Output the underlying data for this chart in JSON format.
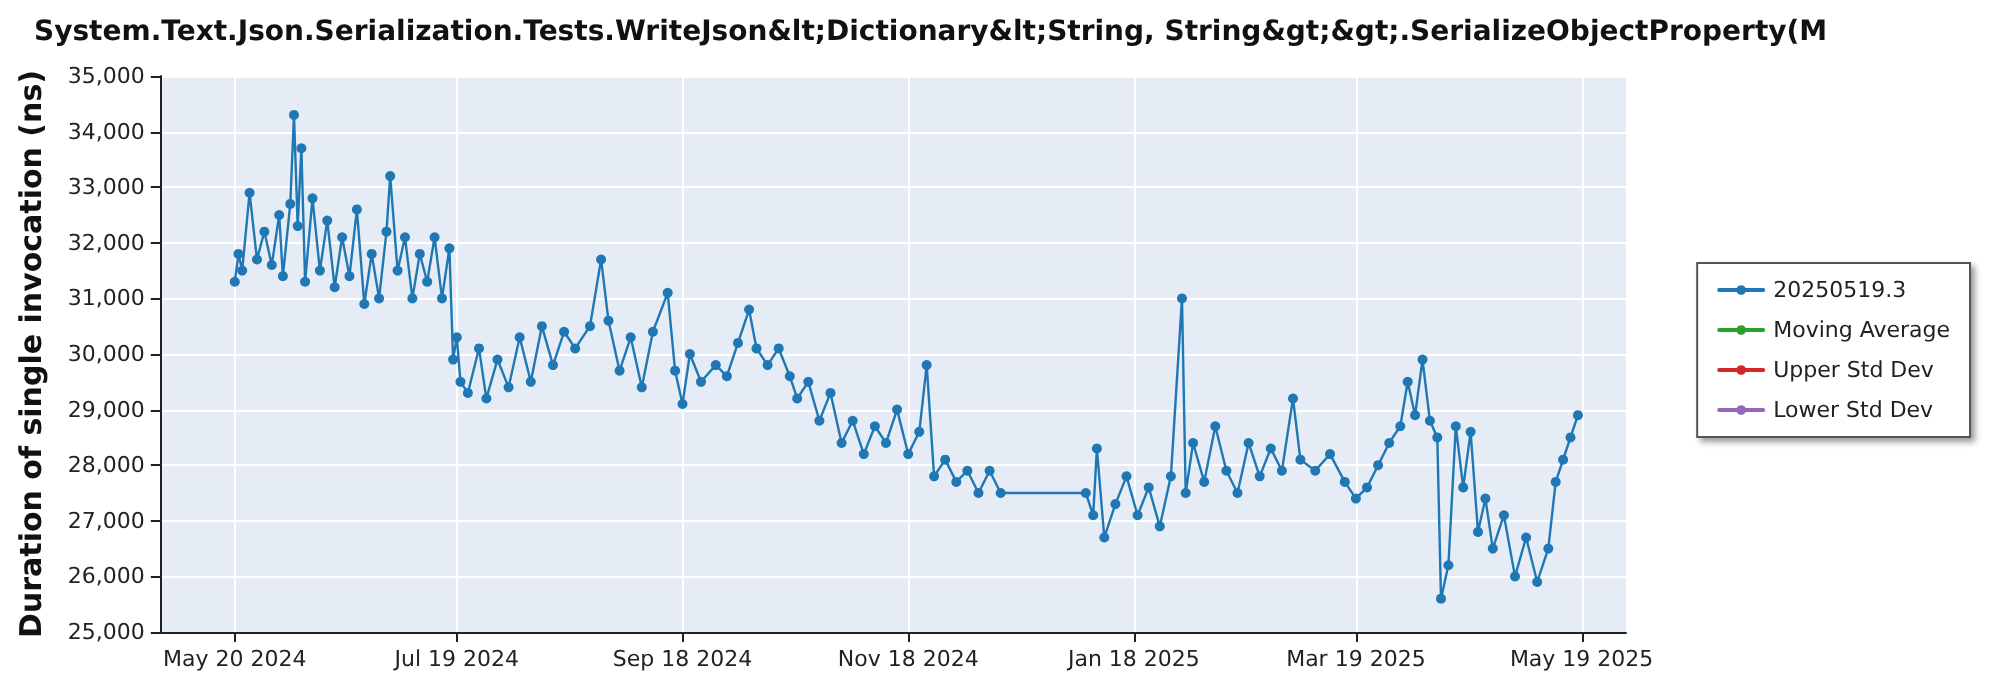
{
  "chart_data": {
    "type": "line",
    "title": "System.Text.Json.Serialization.Tests.WriteJson&lt;Dictionary&lt;String, String&gt;&gt;.SerializeObjectProperty(M",
    "ylabel": "Duration of single invocation (ns)",
    "xlim": [
      "2024-04-30",
      "2025-05-31"
    ],
    "xticks": [
      {
        "value": "2024-05-20",
        "label": "May 20 2024"
      },
      {
        "value": "2024-07-19",
        "label": "Jul 19 2024"
      },
      {
        "value": "2024-09-18",
        "label": "Sep 18 2024"
      },
      {
        "value": "2024-11-18",
        "label": "Nov 18 2024"
      },
      {
        "value": "2025-01-18",
        "label": "Jan 18 2025"
      },
      {
        "value": "2025-03-19",
        "label": "Mar 19 2025"
      },
      {
        "value": "2025-05-19",
        "label": "May 19 2025"
      }
    ],
    "ylim": [
      25000,
      35000
    ],
    "yticks": [
      {
        "value": 25000,
        "label": "25,000"
      },
      {
        "value": 26000,
        "label": "26,000"
      },
      {
        "value": 27000,
        "label": "27,000"
      },
      {
        "value": 28000,
        "label": "28,000"
      },
      {
        "value": 29000,
        "label": "29,000"
      },
      {
        "value": 30000,
        "label": "30,000"
      },
      {
        "value": 31000,
        "label": "31,000"
      },
      {
        "value": 32000,
        "label": "32,000"
      },
      {
        "value": 33000,
        "label": "33,000"
      },
      {
        "value": 34000,
        "label": "34,000"
      },
      {
        "value": 35000,
        "label": "35,000"
      }
    ],
    "grid": true,
    "legend": "right",
    "marker": "circle",
    "line_style": "solid",
    "series": [
      {
        "name": "20250519.3",
        "color": "#1f77b4",
        "x": [
          "2024-05-20",
          "2024-05-21",
          "2024-05-22",
          "2024-05-24",
          "2024-05-26",
          "2024-05-28",
          "2024-05-30",
          "2024-06-01",
          "2024-06-02",
          "2024-06-04",
          "2024-06-05",
          "2024-06-06",
          "2024-06-07",
          "2024-06-08",
          "2024-06-10",
          "2024-06-12",
          "2024-06-14",
          "2024-06-16",
          "2024-06-18",
          "2024-06-20",
          "2024-06-22",
          "2024-06-24",
          "2024-06-26",
          "2024-06-28",
          "2024-06-30",
          "2024-07-01",
          "2024-07-03",
          "2024-07-05",
          "2024-07-07",
          "2024-07-09",
          "2024-07-11",
          "2024-07-13",
          "2024-07-15",
          "2024-07-17",
          "2024-07-18",
          "2024-07-19",
          "2024-07-20",
          "2024-07-22",
          "2024-07-25",
          "2024-07-27",
          "2024-07-30",
          "2024-08-02",
          "2024-08-05",
          "2024-08-08",
          "2024-08-11",
          "2024-08-14",
          "2024-08-17",
          "2024-08-20",
          "2024-08-24",
          "2024-08-27",
          "2024-08-29",
          "2024-09-01",
          "2024-09-04",
          "2024-09-07",
          "2024-09-10",
          "2024-09-14",
          "2024-09-16",
          "2024-09-18",
          "2024-09-20",
          "2024-09-23",
          "2024-09-27",
          "2024-09-30",
          "2024-10-03",
          "2024-10-06",
          "2024-10-08",
          "2024-10-11",
          "2024-10-14",
          "2024-10-17",
          "2024-10-19",
          "2024-10-22",
          "2024-10-25",
          "2024-10-28",
          "2024-10-31",
          "2024-11-03",
          "2024-11-06",
          "2024-11-09",
          "2024-11-12",
          "2024-11-15",
          "2024-11-18",
          "2024-11-21",
          "2024-11-23",
          "2024-11-25",
          "2024-11-28",
          "2024-12-01",
          "2024-12-04",
          "2024-12-07",
          "2024-12-10",
          "2024-12-13",
          "2025-01-05",
          "2025-01-07",
          "2025-01-08",
          "2025-01-10",
          "2025-01-13",
          "2025-01-16",
          "2025-01-19",
          "2025-01-22",
          "2025-01-25",
          "2025-01-28",
          "2025-01-31",
          "2025-02-01",
          "2025-02-03",
          "2025-02-06",
          "2025-02-09",
          "2025-02-12",
          "2025-02-15",
          "2025-02-18",
          "2025-02-21",
          "2025-02-24",
          "2025-02-27",
          "2025-03-02",
          "2025-03-04",
          "2025-03-08",
          "2025-03-12",
          "2025-03-16",
          "2025-03-19",
          "2025-03-22",
          "2025-03-25",
          "2025-03-28",
          "2025-03-31",
          "2025-04-02",
          "2025-04-04",
          "2025-04-06",
          "2025-04-08",
          "2025-04-10",
          "2025-04-11",
          "2025-04-13",
          "2025-04-15",
          "2025-04-17",
          "2025-04-19",
          "2025-04-21",
          "2025-04-23",
          "2025-04-25",
          "2025-04-28",
          "2025-05-01",
          "2025-05-04",
          "2025-05-07",
          "2025-05-10",
          "2025-05-12",
          "2025-05-14",
          "2025-05-16",
          "2025-05-18"
        ],
        "values": [
          31300,
          31800,
          31500,
          32900,
          31700,
          32200,
          31600,
          32500,
          31400,
          32700,
          34300,
          32300,
          33700,
          31300,
          32800,
          31500,
          32400,
          31200,
          32100,
          31400,
          32600,
          30900,
          31800,
          31000,
          32200,
          33200,
          31500,
          32100,
          31000,
          31800,
          31300,
          32100,
          31000,
          31900,
          29900,
          30300,
          29500,
          29300,
          30100,
          29200,
          29900,
          29400,
          30300,
          29500,
          30500,
          29800,
          30400,
          30100,
          30500,
          31700,
          30600,
          29700,
          30300,
          29400,
          30400,
          31100,
          29700,
          29100,
          30000,
          29500,
          29800,
          29600,
          30200,
          30800,
          30100,
          29800,
          30100,
          29600,
          29200,
          29500,
          28800,
          29300,
          28400,
          28800,
          28200,
          28700,
          28400,
          29000,
          28200,
          28600,
          29800,
          27800,
          28100,
          27700,
          27900,
          27500,
          27900,
          27500,
          27500,
          27100,
          28300,
          26700,
          27300,
          27800,
          27100,
          27600,
          26900,
          27800,
          31000,
          27500,
          28400,
          27700,
          28700,
          27900,
          27500,
          28400,
          27800,
          28300,
          27900,
          29200,
          28100,
          27900,
          28200,
          27700,
          27400,
          27600,
          28000,
          28400,
          28700,
          29500,
          28900,
          29900,
          28800,
          28500,
          25600,
          26200,
          28700,
          27600,
          28600,
          26800,
          27400,
          26500,
          27100,
          26000,
          26700,
          25900,
          26500,
          27700,
          28100,
          28500,
          28900
        ]
      },
      {
        "name": "Moving Average",
        "color": "#2ca02c"
      },
      {
        "name": "Upper Std Dev",
        "color": "#d62728"
      },
      {
        "name": "Lower Std Dev",
        "color": "#9467bd"
      }
    ]
  }
}
